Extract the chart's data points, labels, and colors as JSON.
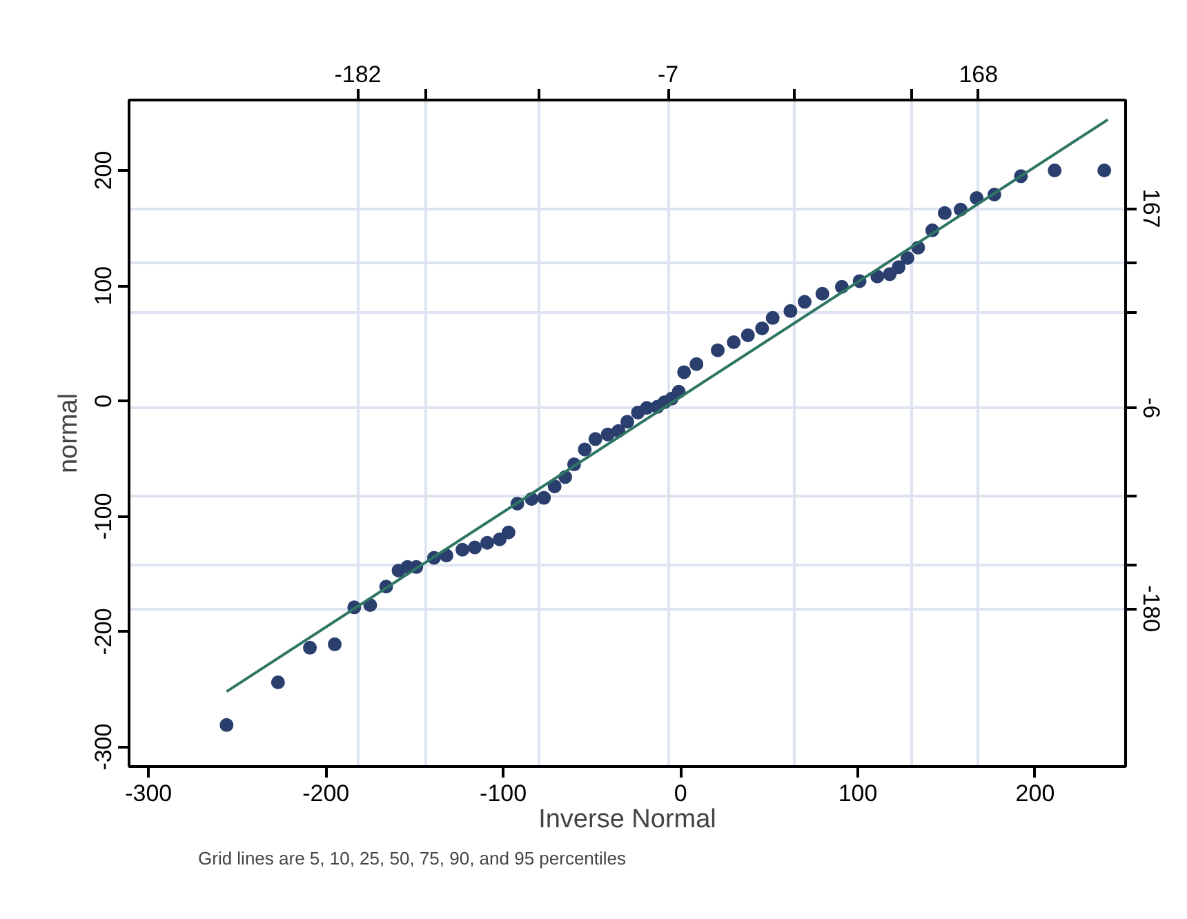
{
  "chart_data": {
    "type": "scatter",
    "xlabel": "Inverse Normal",
    "ylabel": "normal",
    "annotations": [
      "Grid lines are 5, 10, 25, 50, 75, 90, and 95 percentiles"
    ],
    "xlim": [
      -311,
      251
    ],
    "ylim": [
      -317,
      261
    ],
    "xticks": [
      -300,
      -200,
      -100,
      0,
      100,
      200
    ],
    "yticks": [
      -300,
      -200,
      -100,
      0,
      100,
      200
    ],
    "x2lim": [
      -311,
      251
    ],
    "x2ticks": [
      -182,
      {
        "value": -144,
        "label": null
      },
      {
        "value": -80,
        "label": null
      },
      -7,
      {
        "value": 64,
        "label": null
      },
      {
        "value": 130,
        "label": null
      },
      168
    ],
    "y2lim": [
      -317,
      261
    ],
    "y2ticks": [
      -180,
      {
        "value": -142,
        "label": null
      },
      {
        "value": -83,
        "label": null
      },
      -6,
      {
        "value": 77,
        "label": null
      },
      {
        "value": 120,
        "label": null
      },
      167
    ],
    "grid": true,
    "series": [
      {
        "type": "scatter",
        "marker": "circle",
        "color": "#2a3f6e",
        "x": [
          -256,
          -227,
          -209,
          -195,
          -184,
          -175,
          -166,
          -159,
          -154,
          -149,
          -139,
          -132,
          -123,
          -116,
          -109,
          -102,
          -97,
          -92,
          -84,
          -77,
          -71,
          -65,
          -60,
          -54,
          -48,
          -41,
          -35,
          -30,
          -24,
          -19,
          -13,
          -9,
          -5,
          -1,
          2,
          9,
          21,
          30,
          38,
          46,
          52,
          62,
          70,
          80,
          91,
          101,
          111,
          118,
          123,
          128,
          134,
          142,
          149,
          158,
          167,
          177,
          192,
          211,
          239
        ],
        "values": [
          -281,
          -244,
          -214,
          -211,
          -179,
          -177,
          -161,
          -147,
          -144,
          -144,
          -136,
          -134,
          -129,
          -127,
          -123,
          -120,
          -114,
          -89,
          -85,
          -84,
          -74,
          -66,
          -55,
          -42,
          -33,
          -29,
          -26,
          -18,
          -10,
          -6,
          -5,
          -1,
          2,
          8,
          25,
          32,
          44,
          51,
          57,
          63,
          72,
          78,
          86,
          93,
          99,
          104,
          108,
          110,
          116,
          124,
          133,
          148,
          163,
          166,
          176,
          179,
          195,
          200,
          200
        ]
      },
      {
        "type": "line",
        "marker": "none",
        "color": "#2e7563",
        "x": [
          -256,
          241
        ],
        "values": [
          -252,
          244
        ]
      }
    ]
  }
}
